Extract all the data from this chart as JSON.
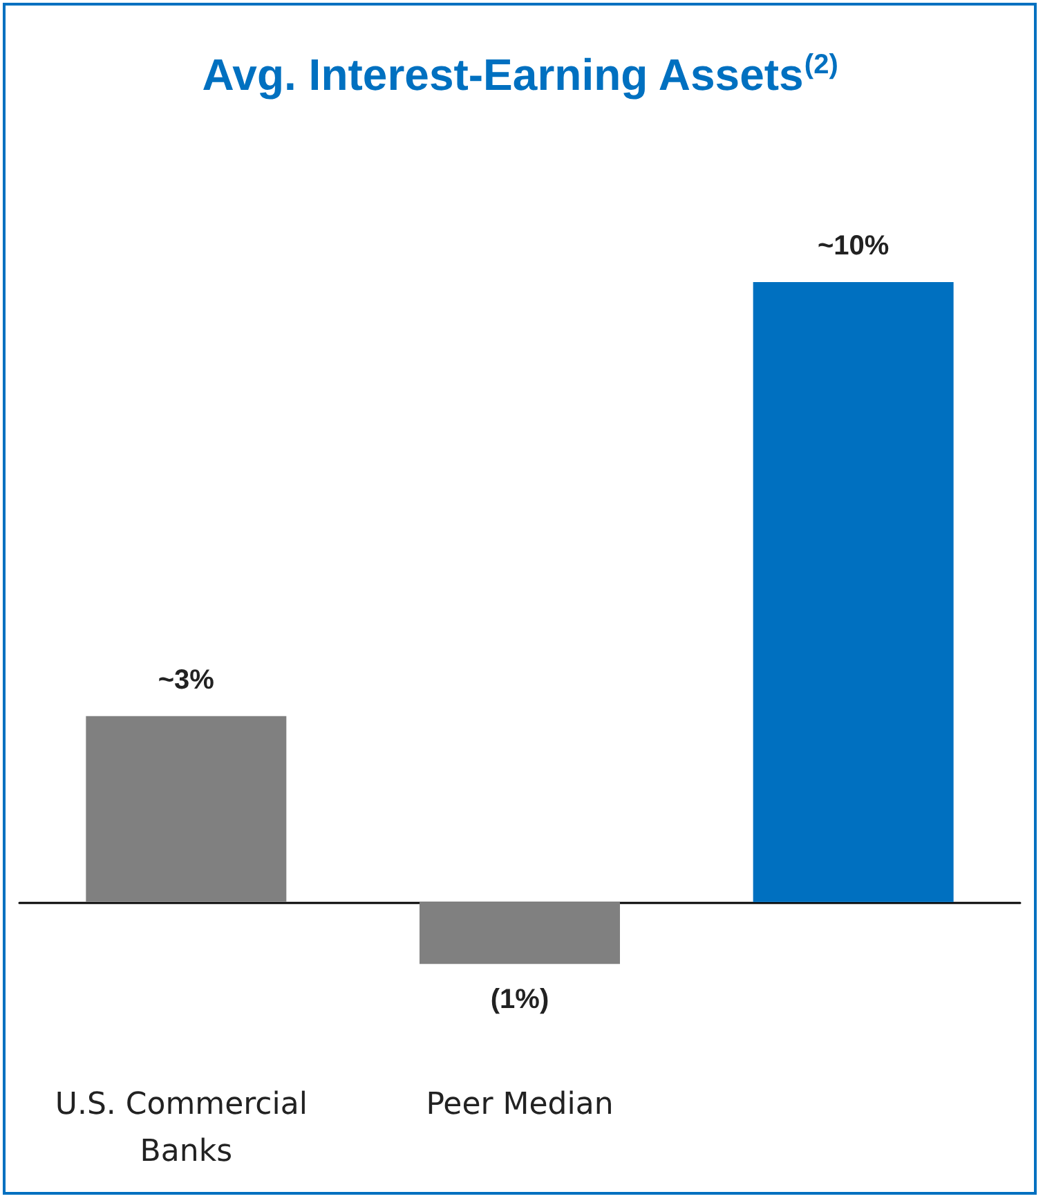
{
  "chart_data": {
    "type": "bar",
    "title": "Avg. Interest-Earning Assets$^{(2)}$",
    "categories": [
      "U.S. Commercial Banks",
      "Peer Median",
      null
    ],
    "values": [
      3,
      -1,
      10
    ],
    "value_labels": [
      "~3%",
      "(1%)",
      "~10%"
    ],
    "colors": [
      "#808080",
      "#808080",
      "#0070c0"
    ]
  }
}
